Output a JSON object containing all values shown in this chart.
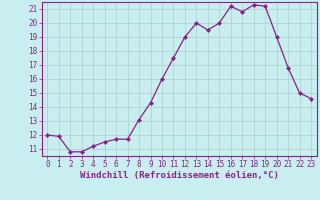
{
  "x": [
    0,
    1,
    2,
    3,
    4,
    5,
    6,
    7,
    8,
    9,
    10,
    11,
    12,
    13,
    14,
    15,
    16,
    17,
    18,
    19,
    20,
    21,
    22,
    23
  ],
  "y": [
    12.0,
    11.9,
    10.8,
    10.8,
    11.2,
    11.5,
    11.7,
    11.7,
    13.1,
    14.3,
    16.0,
    17.5,
    19.0,
    20.0,
    19.5,
    20.0,
    21.2,
    20.8,
    21.3,
    21.2,
    19.0,
    16.8,
    15.0,
    14.6
  ],
  "line_color": "#882288",
  "marker": "D",
  "marker_size": 2.0,
  "linewidth": 0.9,
  "bg_color": "#c8eef0",
  "grid_color": "#aacccc",
  "xlabel": "Windchill (Refroidissement éolien,°C)",
  "ylabel_ticks": [
    11,
    12,
    13,
    14,
    15,
    16,
    17,
    18,
    19,
    20,
    21
  ],
  "ylim": [
    10.5,
    21.5
  ],
  "xlim": [
    -0.5,
    23.5
  ],
  "xtick_labels": [
    "0",
    "1",
    "2",
    "3",
    "4",
    "5",
    "6",
    "7",
    "8",
    "9",
    "10",
    "11",
    "12",
    "13",
    "14",
    "15",
    "16",
    "17",
    "18",
    "19",
    "20",
    "21",
    "22",
    "23"
  ],
  "xlabel_fontsize": 6.5,
  "tick_fontsize": 5.5
}
